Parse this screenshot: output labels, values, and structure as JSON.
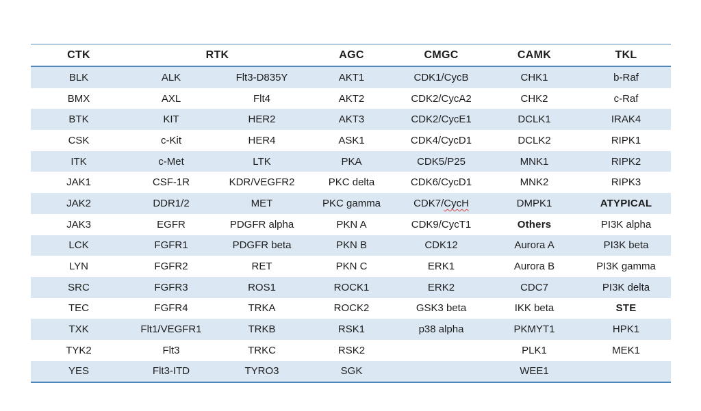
{
  "colors": {
    "band_fill": "#dbe8f4",
    "border_blue": "#4e87ba",
    "text": "#1c1c1c",
    "spellcheck_red": "#d64541",
    "page_background": "#ffffff"
  },
  "table": {
    "headers": [
      {
        "label": "CTK",
        "colspan": 1
      },
      {
        "label": "RTK",
        "colspan": 2
      },
      {
        "label": "AGC",
        "colspan": 1
      },
      {
        "label": "CMGC",
        "colspan": 1
      },
      {
        "label": "CAMK",
        "colspan": 1
      },
      {
        "label": "TKL",
        "colspan": 1
      }
    ],
    "rows": [
      [
        "BLK",
        "ALK",
        "Flt3-D835Y",
        "AKT1",
        "CDK1/CycB",
        "CHK1",
        "b-Raf"
      ],
      [
        "BMX",
        "AXL",
        "Flt4",
        "AKT2",
        "CDK2/CycA2",
        "CHK2",
        "c-Raf"
      ],
      [
        "BTK",
        "KIT",
        "HER2",
        "AKT3",
        "CDK2/CycE1",
        "DCLK1",
        "IRAK4"
      ],
      [
        "CSK",
        "c-Kit",
        "HER4",
        "ASK1",
        "CDK4/CycD1",
        "DCLK2",
        "RIPK1"
      ],
      [
        "ITK",
        "c-Met",
        "LTK",
        "PKA",
        "CDK5/P25",
        "MNK1",
        "RIPK2"
      ],
      [
        "JAK1",
        "CSF-1R",
        "KDR/VEGFR2",
        "PKC delta",
        "CDK6/CycD1",
        "MNK2",
        "RIPK3"
      ],
      [
        "JAK2",
        "DDR1/2",
        "MET",
        "PKC gamma",
        {
          "text": "CDK7/",
          "squiggle": "CycH"
        },
        "DMPK1",
        {
          "text": "ATYPICAL",
          "bold": true
        }
      ],
      [
        "JAK3",
        "EGFR",
        "PDGFR alpha",
        "PKN A",
        "CDK9/CycT1",
        {
          "text": "Others",
          "bold": true
        },
        "PI3K alpha"
      ],
      [
        "LCK",
        "FGFR1",
        "PDGFR beta",
        "PKN B",
        "CDK12",
        "Aurora A",
        "PI3K beta"
      ],
      [
        "LYN",
        "FGFR2",
        "RET",
        "PKN C",
        "ERK1",
        "Aurora B",
        "PI3K gamma"
      ],
      [
        "SRC",
        "FGFR3",
        "ROS1",
        "ROCK1",
        "ERK2",
        "CDC7",
        "PI3K delta"
      ],
      [
        "TEC",
        "FGFR4",
        "TRKA",
        "ROCK2",
        "GSK3 beta",
        "IKK beta",
        {
          "text": "STE",
          "bold": true
        }
      ],
      [
        "TXK",
        "Flt1/VEGFR1",
        "TRKB",
        "RSK1",
        "p38 alpha",
        "PKMYT1",
        "HPK1"
      ],
      [
        "TYK2",
        "Flt3",
        "TRKC",
        "RSK2",
        "",
        {
          "text": "PLK1",
          "small": true
        },
        "MEK1"
      ],
      [
        "YES",
        "Flt3-ITD",
        "TYRO3",
        "SGK",
        "",
        "WEE1",
        ""
      ]
    ]
  }
}
